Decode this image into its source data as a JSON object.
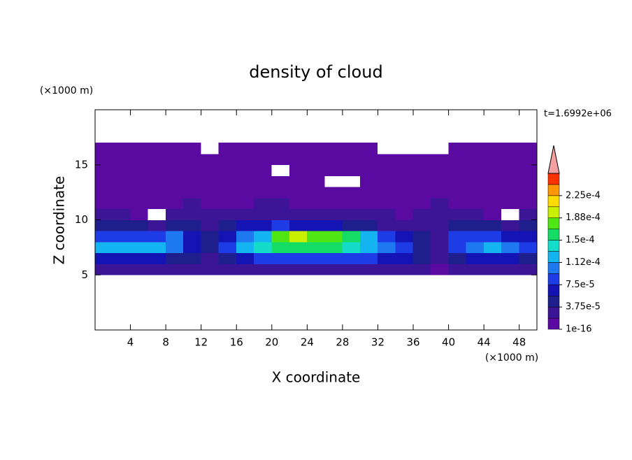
{
  "chart_data": {
    "type": "contour",
    "title": "density of cloud",
    "x_label": "X coordinate",
    "y_label": "Z coordinate",
    "x_unit": "(×1000 m)",
    "y_unit": "(×1000 m)",
    "annotation": "t=1.6992e+06",
    "xlim": [
      0,
      50
    ],
    "ylim": [
      0,
      20
    ],
    "xticks": [
      4,
      8,
      12,
      16,
      20,
      24,
      28,
      32,
      36,
      40,
      44,
      48
    ],
    "yticks": [
      5,
      10,
      15
    ],
    "x": [
      1,
      3,
      5,
      7,
      9,
      11,
      13,
      15,
      17,
      19,
      21,
      23,
      25,
      27,
      29,
      31,
      33,
      35,
      37,
      39,
      41,
      43,
      45,
      47,
      49
    ],
    "z": [
      5.5,
      6.5,
      7.5,
      8.5,
      9.5,
      10.5,
      11.5,
      12.5,
      13.5,
      14.5,
      15.5,
      16.5
    ],
    "values": [
      [
        3e-05,
        3e-05,
        3e-05,
        3e-05,
        3e-05,
        3e-05,
        2e-05,
        3e-05,
        3e-05,
        3e-05,
        3e-05,
        3e-05,
        3e-05,
        3e-05,
        3e-05,
        3e-05,
        3e-05,
        3e-05,
        3e-05,
        1e-05,
        3e-05,
        3e-05,
        3e-05,
        3e-05,
        3e-05
      ],
      [
        6e-05,
        6e-05,
        6e-05,
        6e-05,
        5e-05,
        4e-05,
        3e-05,
        4e-05,
        7e-05,
        8e-05,
        8e-05,
        8e-05,
        8e-05,
        8e-05,
        8e-05,
        8e-05,
        7e-05,
        6e-05,
        4e-05,
        2e-05,
        5e-05,
        6e-05,
        6e-05,
        6e-05,
        5e-05
      ],
      [
        0.00012,
        0.00013,
        0.00013,
        0.00012,
        0.00011,
        6e-05,
        4e-05,
        9e-05,
        0.00012,
        0.00014,
        0.00015,
        0.00016,
        0.00016,
        0.00015,
        0.00014,
        0.00013,
        0.00011,
        9e-05,
        5e-05,
        3e-05,
        9e-05,
        0.00011,
        0.00012,
        0.00011,
        8e-05
      ],
      [
        9e-05,
        9e-05,
        8e-05,
        8e-05,
        0.0001,
        6e-05,
        4e-05,
        6e-05,
        0.00011,
        0.00013,
        0.00017,
        0.00019,
        0.00018,
        0.00017,
        0.00015,
        0.00012,
        9e-05,
        6e-05,
        4e-05,
        3e-05,
        8e-05,
        9e-05,
        8e-05,
        7e-05,
        6e-05
      ],
      [
        4e-05,
        4e-05,
        4e-05,
        3e-05,
        5e-05,
        4e-05,
        3e-05,
        4e-05,
        6e-05,
        7e-05,
        8e-05,
        7e-05,
        7e-05,
        6e-05,
        5e-05,
        4e-05,
        3e-05,
        3e-05,
        3e-05,
        3e-05,
        4e-05,
        4e-05,
        4e-05,
        3e-05,
        4e-05
      ],
      [
        2e-05,
        2e-05,
        1e-05,
        0,
        2e-05,
        3e-05,
        3e-05,
        3e-05,
        3e-05,
        3e-05,
        2e-05,
        2e-05,
        2e-05,
        2e-05,
        2e-05,
        3e-05,
        2e-05,
        1e-05,
        2e-05,
        3e-05,
        2e-05,
        2e-05,
        1e-05,
        0,
        2e-05
      ],
      [
        1e-05,
        1e-05,
        1e-05,
        1e-05,
        1e-05,
        2e-05,
        1e-05,
        1e-05,
        1e-05,
        2e-05,
        2e-05,
        1e-05,
        1e-05,
        1e-05,
        1e-05,
        1e-05,
        1e-05,
        1e-05,
        1e-05,
        2e-05,
        1e-05,
        1e-05,
        1e-05,
        1e-05,
        1e-05
      ],
      [
        1e-05,
        5e-06,
        5e-06,
        5e-06,
        1e-05,
        1e-05,
        5e-06,
        5e-06,
        1e-05,
        1e-05,
        1e-05,
        5e-06,
        5e-06,
        5e-06,
        5e-06,
        1e-05,
        1e-05,
        5e-06,
        5e-06,
        1e-05,
        1e-05,
        5e-06,
        5e-06,
        5e-06,
        5e-06
      ],
      [
        5e-06,
        5e-06,
        5e-06,
        5e-06,
        5e-06,
        5e-06,
        5e-06,
        5e-06,
        5e-06,
        5e-06,
        5e-06,
        5e-06,
        5e-06,
        0,
        0,
        5e-06,
        5e-06,
        5e-06,
        5e-06,
        5e-06,
        5e-06,
        5e-06,
        5e-06,
        5e-06,
        5e-06
      ],
      [
        5e-06,
        5e-06,
        5e-06,
        5e-06,
        5e-06,
        5e-06,
        5e-06,
        5e-06,
        5e-06,
        5e-06,
        0,
        5e-06,
        5e-06,
        5e-06,
        5e-06,
        5e-06,
        5e-06,
        5e-06,
        5e-06,
        5e-06,
        5e-06,
        5e-06,
        5e-06,
        5e-06,
        5e-06
      ],
      [
        5e-06,
        5e-06,
        5e-06,
        5e-06,
        5e-06,
        5e-06,
        5e-06,
        5e-06,
        5e-06,
        5e-06,
        5e-06,
        5e-06,
        5e-06,
        5e-06,
        5e-06,
        5e-06,
        5e-06,
        5e-06,
        5e-06,
        5e-06,
        5e-06,
        5e-06,
        5e-06,
        5e-06,
        5e-06
      ],
      [
        5e-06,
        5e-06,
        5e-06,
        5e-06,
        5e-06,
        5e-06,
        0,
        5e-06,
        5e-06,
        5e-06,
        5e-06,
        5e-06,
        5e-06,
        5e-06,
        5e-06,
        5e-06,
        0,
        0,
        0,
        0,
        5e-06,
        5e-06,
        5e-06,
        5e-06,
        5e-06
      ]
    ],
    "levels": [
      1e-16,
      1.875e-05,
      3.75e-05,
      5.625e-05,
      7.5e-05,
      9.375e-05,
      0.0001125,
      0.00013125,
      0.00015,
      0.00016875,
      0.0001875,
      0.00020625,
      0.000225,
      0.00024375,
      0.0002625
    ],
    "level_colors": [
      "#5a0aa0",
      "#3c1496",
      "#1e1e8c",
      "#1414b4",
      "#1e3ce6",
      "#1e78f0",
      "#14b4f0",
      "#14dcc8",
      "#14dc64",
      "#50e614",
      "#c8f000",
      "#ffdc00",
      "#ff9600",
      "#ff3200"
    ],
    "over_color": "#f4a0a0",
    "colorbar_ticks": [
      {
        "value": 1e-16,
        "label": "1e-16"
      },
      {
        "value": 3.75e-05,
        "label": "3.75e-5"
      },
      {
        "value": 7.5e-05,
        "label": "7.5e-5"
      },
      {
        "value": 0.0001125,
        "label": "1.12e-4"
      },
      {
        "value": 0.00015,
        "label": "1.5e-4"
      },
      {
        "value": 0.0001875,
        "label": "1.88e-4"
      },
      {
        "value": 0.000225,
        "label": "2.25e-4"
      }
    ]
  }
}
